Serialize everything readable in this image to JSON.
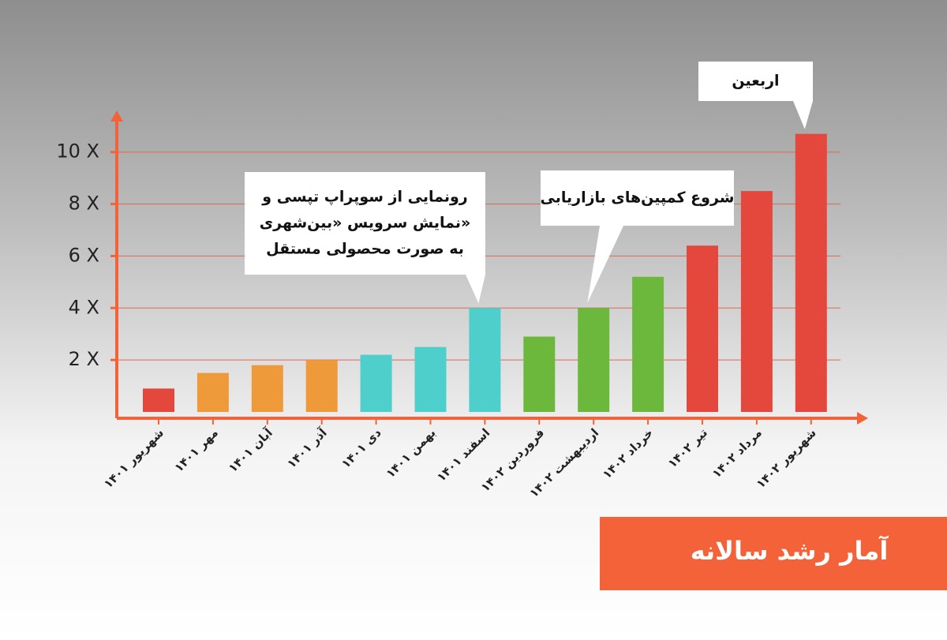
{
  "chart_data": {
    "type": "bar",
    "title": "آمار رشد سالانه",
    "categories": [
      "شهریور ۱۴۰۱",
      "مهر ۱۴۰۱",
      "آبان ۱۴۰۱",
      "آذر ۱۴۰۱",
      "دی ۱۴۰۱",
      "بهمن ۱۴۰۱",
      "اسفند ۱۴۰۱",
      "فروردین ۱۴۰۲",
      "اردیبهشت ۱۴۰۲",
      "خرداد ۱۴۰۲",
      "تیر ۱۴۰۲",
      "مرداد ۱۴۰۲",
      "شهریور ۱۴۰۲"
    ],
    "values": [
      0.9,
      1.5,
      1.8,
      2.0,
      2.2,
      2.5,
      4.0,
      2.9,
      4.0,
      5.2,
      6.4,
      8.5,
      10.7
    ],
    "colors": [
      "#e4473b",
      "#ee9a3a",
      "#ee9a3a",
      "#ee9a3a",
      "#4fcfcb",
      "#4fcfcb",
      "#4fcfcb",
      "#6cb83c",
      "#6cb83c",
      "#6cb83c",
      "#e4473b",
      "#e4473b",
      "#e4473b"
    ],
    "ylim": [
      0,
      11.6
    ],
    "yticks": [
      {
        "value": 2,
        "label": "2 X"
      },
      {
        "value": 4,
        "label": "4 X"
      },
      {
        "value": 6,
        "label": "6 X"
      },
      {
        "value": 8,
        "label": "8 X"
      },
      {
        "value": 10,
        "label": "10 X"
      }
    ],
    "grid": true,
    "annotations": [
      {
        "lines": [
          "رونمایی از سوپراپ تپسی و",
          "نمایش سرویس «بین‌شهری»",
          "به صورت محصولی مستقل"
        ]
      },
      {
        "lines": [
          "شروع کمپین‌های بازاریابی"
        ]
      },
      {
        "lines": [
          "اربعین"
        ]
      }
    ]
  }
}
